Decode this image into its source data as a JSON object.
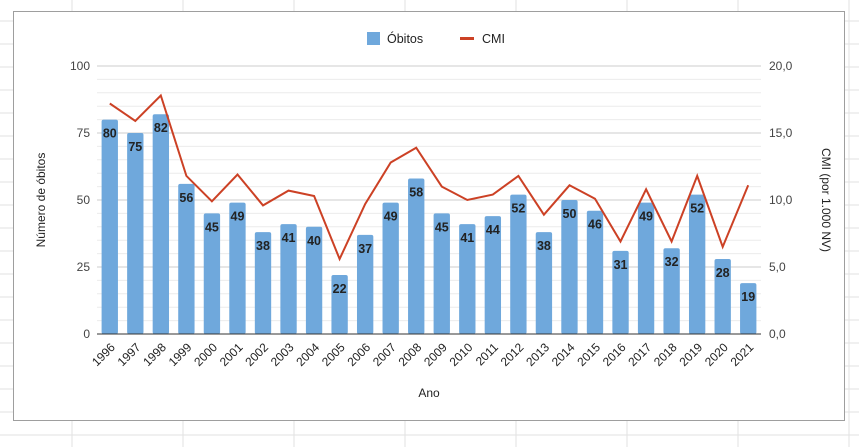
{
  "chart_data": {
    "type": "bar+line",
    "title": "",
    "legend": {
      "position": "top",
      "entries": [
        {
          "label": "Óbitos",
          "type": "bar",
          "color": "#6fa8dc"
        },
        {
          "label": "CMI",
          "type": "line",
          "color": "#cc4125"
        }
      ]
    },
    "xlabel": "Ano",
    "ylabel_left": "Número de óbitos",
    "ylabel_right": "CMI (por 1.000 NV)",
    "ylim_left": [
      0,
      100
    ],
    "ylim_right": [
      0,
      20
    ],
    "yticks_left": [
      "0",
      "25",
      "50",
      "75",
      "100"
    ],
    "yticks_right": [
      "0,0",
      "5,0",
      "10,0",
      "15,0",
      "20,0"
    ],
    "grid": true,
    "categories": [
      "1996",
      "1997",
      "1998",
      "1999",
      "2000",
      "2001",
      "2002",
      "2003",
      "2004",
      "2005",
      "2006",
      "2007",
      "2008",
      "2009",
      "2010",
      "2011",
      "2012",
      "2013",
      "2014",
      "2015",
      "2016",
      "2017",
      "2018",
      "2019",
      "2020",
      "2021"
    ],
    "series": [
      {
        "name": "Óbitos",
        "axis": "left",
        "type": "bar",
        "color": "#6fa8dc",
        "values": [
          80,
          75,
          82,
          56,
          45,
          49,
          38,
          41,
          40,
          22,
          37,
          49,
          58,
          45,
          41,
          44,
          52,
          38,
          50,
          46,
          31,
          49,
          32,
          52,
          28,
          19
        ],
        "data_labels": true
      },
      {
        "name": "CMI",
        "axis": "right",
        "type": "line",
        "color": "#cc4125",
        "values": [
          17.2,
          15.9,
          17.8,
          11.8,
          9.9,
          11.9,
          9.6,
          10.7,
          10.3,
          5.6,
          9.7,
          12.8,
          13.9,
          11.0,
          10.0,
          10.4,
          11.8,
          8.9,
          11.1,
          10.1,
          6.9,
          10.8,
          6.9,
          11.8,
          6.5,
          11.1
        ]
      }
    ]
  }
}
